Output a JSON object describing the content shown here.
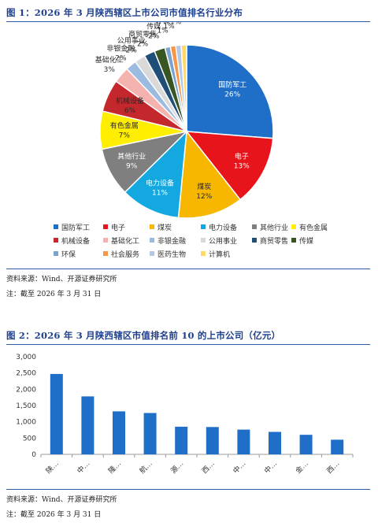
{
  "fig1": {
    "title": "图 1：2026 年 3 月陕西辖区上市公司市值排名行业分布",
    "source": "资料来源：Wind、开源证券研究所",
    "note": "注：截至 2026 年 3 月 31 日"
  },
  "fig2": {
    "title": "图 2：2026 年 3 月陕西辖区市值排名前 10 的上市公司（亿元）",
    "source": "资料来源：Wind、开源证券研究所",
    "note": "注：截至 2026 年 3 月 31 日"
  },
  "colors": {
    "title": "#1f3f8f",
    "bar": "#1f6ec7",
    "pie": [
      "#1f6ec7",
      "#e8141b",
      "#f7b600",
      "#14a8e0",
      "#7f7f7f",
      "#ffee00",
      "#c5282c",
      "#f4b3ae",
      "#9bbbe0",
      "#d9d9d9",
      "#1f4e79",
      "#375623",
      "#7ba3cf",
      "#f79646",
      "#b4c7e7",
      "#ffd966"
    ]
  },
  "chart_data": [
    {
      "type": "pie",
      "categories": [
        "国防军工",
        "电子",
        "煤炭",
        "电力设备",
        "其他行业",
        "有色金属",
        "机械设备",
        "基础化工",
        "非银金融",
        "公用事业",
        "商贸零售",
        "传媒",
        "环保",
        "社会服务",
        "医药生物",
        "计算机"
      ],
      "values": [
        26,
        13,
        12,
        11,
        9,
        7,
        6,
        3,
        2,
        2,
        2,
        2,
        1,
        1,
        1,
        1
      ],
      "labels": [
        "26%",
        "13%",
        "12%",
        "11%",
        "9%",
        "7%",
        "6%",
        "3%",
        "2%",
        "2%",
        "2%",
        "2%",
        "1%",
        "1%",
        "1%",
        "1%"
      ],
      "legend": "bottom"
    },
    {
      "type": "bar",
      "categories": [
        "陕…",
        "中…",
        "隆…",
        "航…",
        "源…",
        "西…",
        "中…",
        "中…",
        "金…",
        "西…"
      ],
      "values": [
        2470,
        1780,
        1320,
        1270,
        850,
        840,
        760,
        690,
        600,
        450
      ],
      "yticks": [
        "0",
        "500",
        "1,000",
        "1,500",
        "2,000",
        "2,500",
        "3,000"
      ],
      "ylim": [
        0,
        3000
      ]
    }
  ]
}
